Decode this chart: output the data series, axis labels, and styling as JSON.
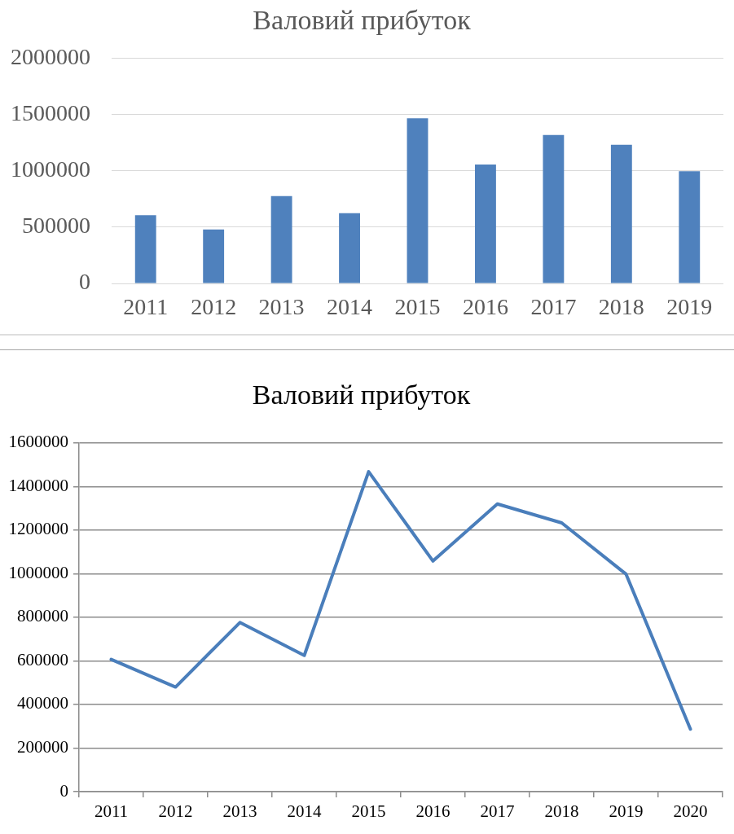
{
  "chart_data": [
    {
      "type": "bar",
      "title": "Валовий прибуток",
      "categories": [
        "2011",
        "2012",
        "2013",
        "2014",
        "2015",
        "2016",
        "2017",
        "2018",
        "2019"
      ],
      "values": [
        607000,
        480000,
        776000,
        625000,
        1468000,
        1058000,
        1320000,
        1233000,
        998000
      ],
      "color": "#4f81bd",
      "ylim": [
        0,
        2000000
      ],
      "yticks": [
        0,
        500000,
        1000000,
        1500000,
        2000000
      ],
      "grid": "y",
      "legend": false
    },
    {
      "type": "line",
      "title": "Валовий прибуток",
      "categories": [
        "2011",
        "2012",
        "2013",
        "2014",
        "2015",
        "2016",
        "2017",
        "2018",
        "2019",
        "2020"
      ],
      "values": [
        607000,
        480000,
        776000,
        625000,
        1468000,
        1058000,
        1320000,
        1233000,
        998000,
        287000
      ],
      "color": "#4a7ebb",
      "ylim": [
        0,
        1600000
      ],
      "yticks": [
        0,
        200000,
        400000,
        600000,
        800000,
        1000000,
        1200000,
        1400000,
        1600000
      ],
      "grid": "y",
      "legend": false,
      "marker": "none"
    }
  ]
}
